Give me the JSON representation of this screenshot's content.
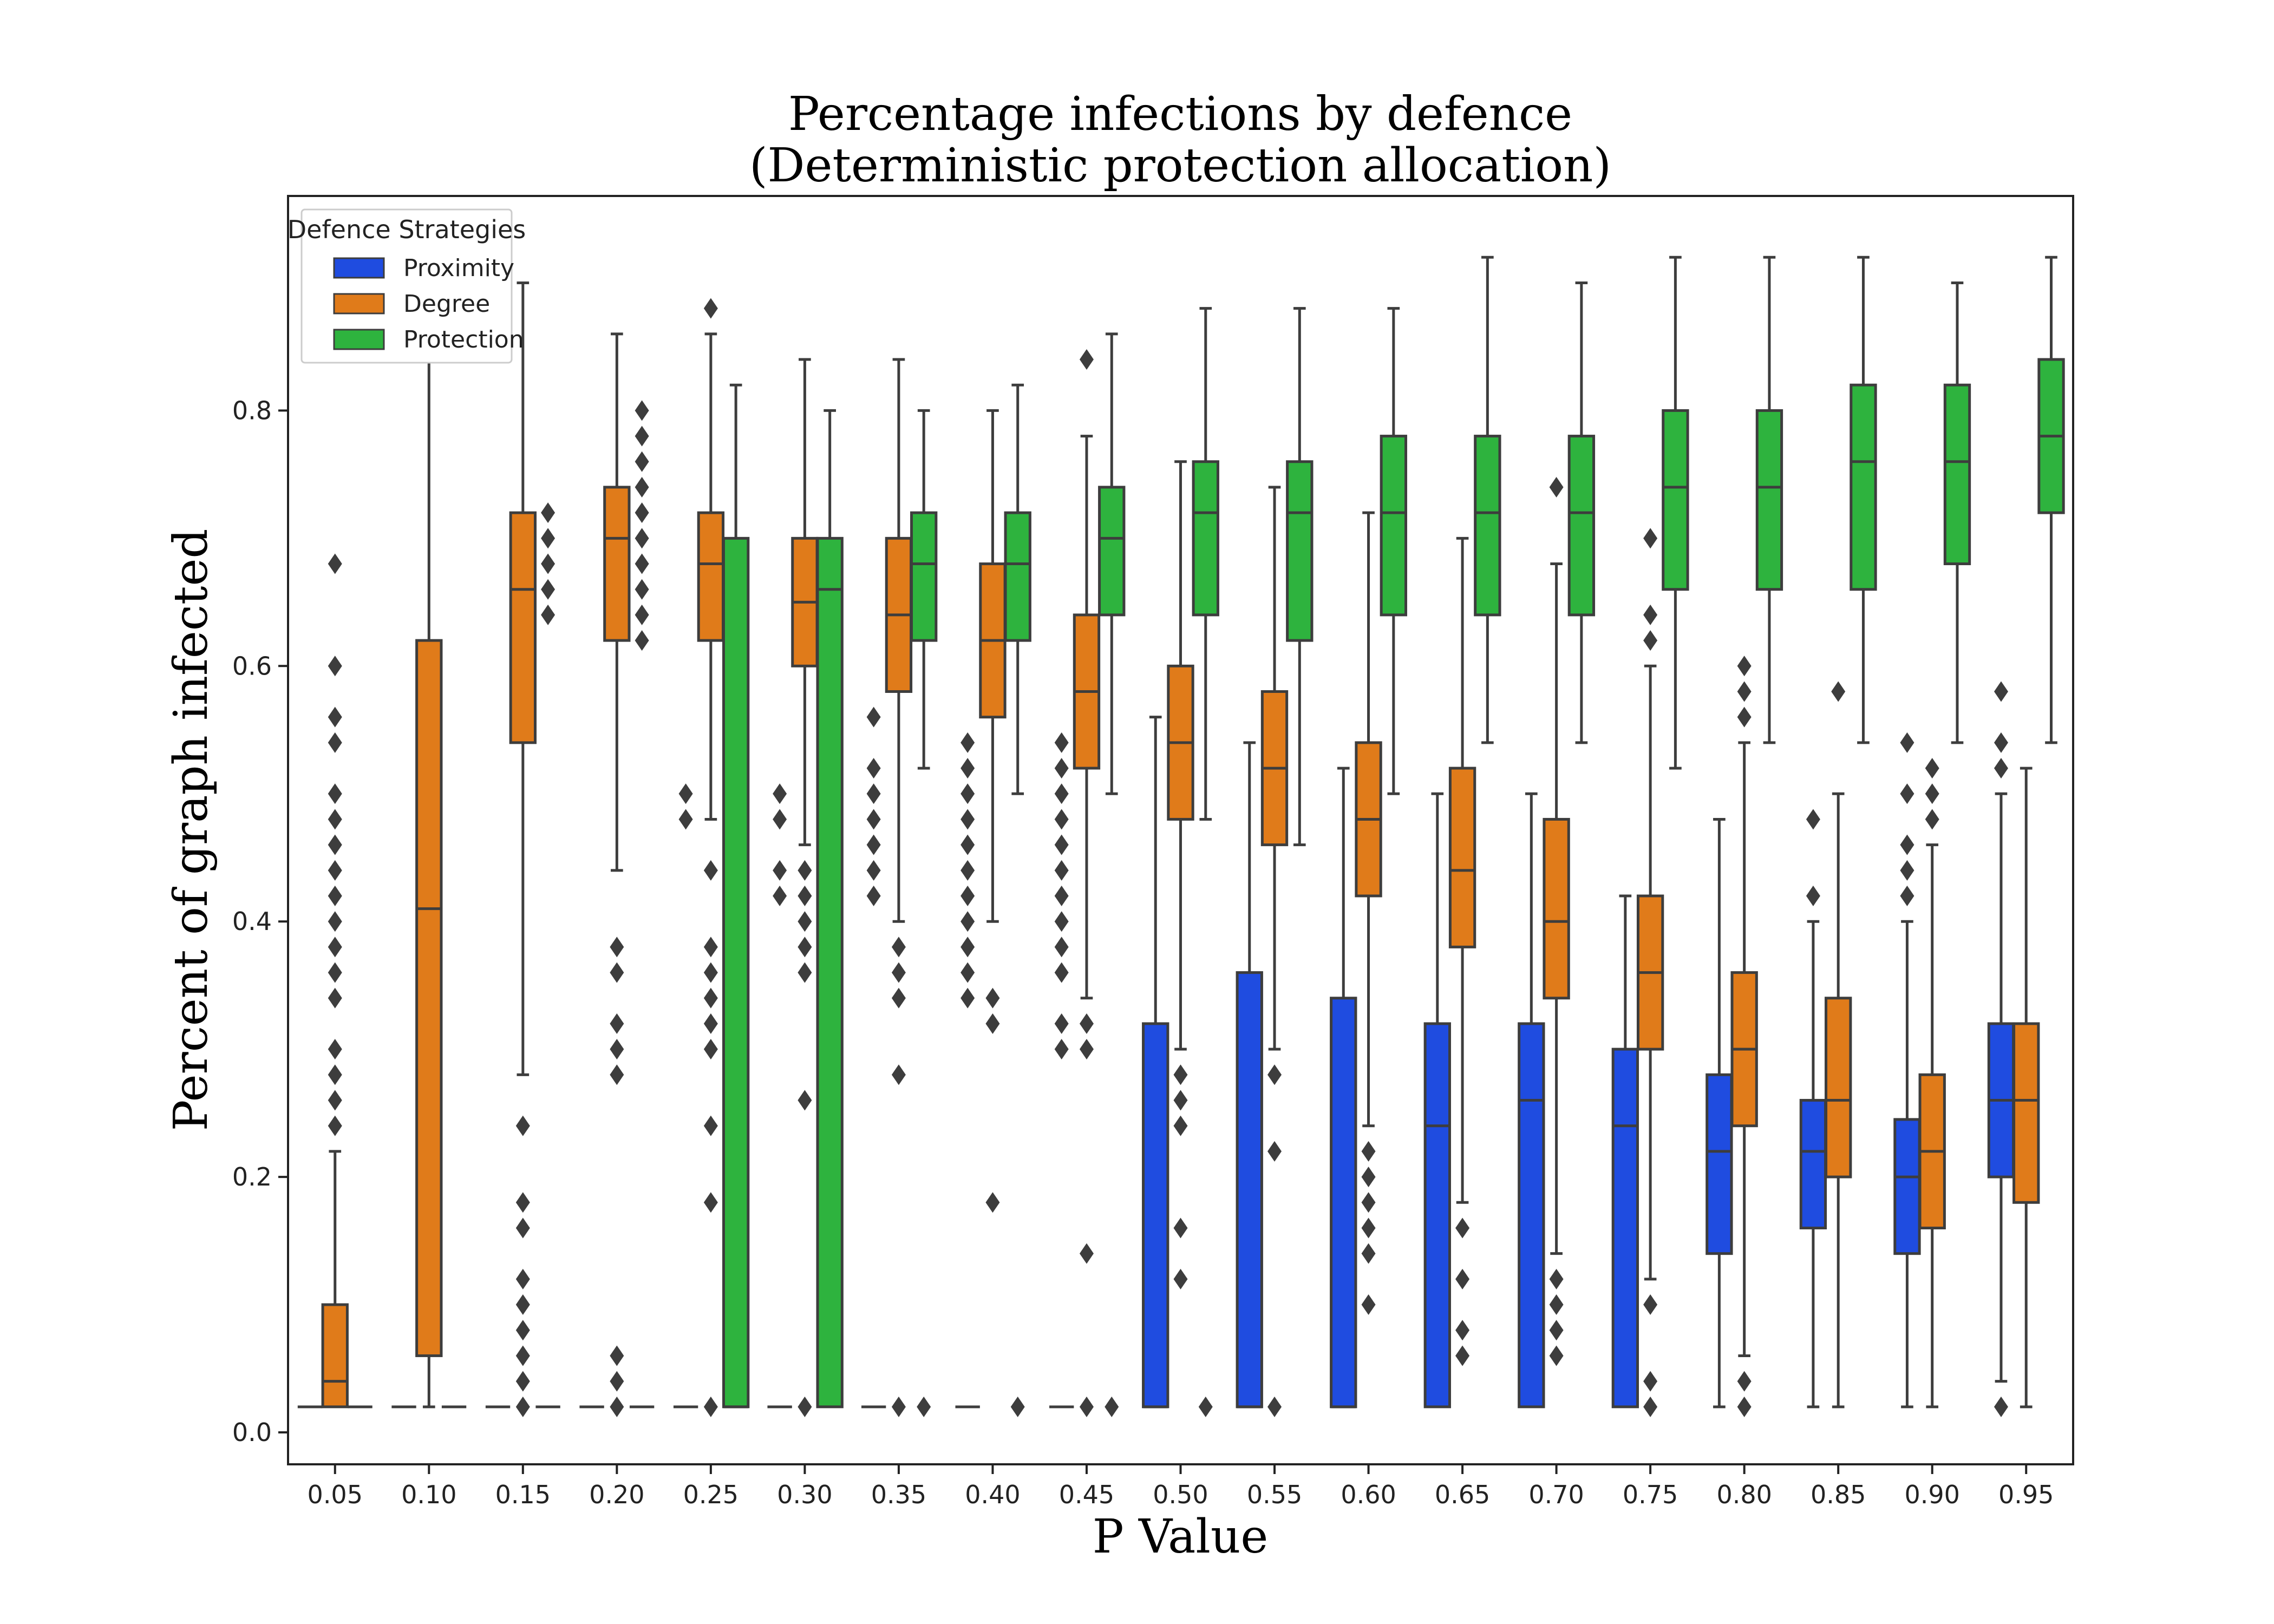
{
  "chart_data": {
    "type": "box",
    "title": "Percentage infections by defence",
    "subtitle": "(Deterministic protection allocation)",
    "xlabel": "P Value",
    "ylabel": "Percent of graph infected",
    "ylim": [
      -0.025,
      0.968
    ],
    "yticks": [
      0.0,
      0.2,
      0.4,
      0.6,
      0.8
    ],
    "ytick_labels": [
      "0.0",
      "0.2",
      "0.4",
      "0.6",
      "0.8"
    ],
    "grid": false,
    "legend": {
      "title": "Defence Strategies",
      "placement": "top-left"
    },
    "categories": [
      "0.05",
      "0.10",
      "0.15",
      "0.20",
      "0.25",
      "0.30",
      "0.35",
      "0.40",
      "0.45",
      "0.50",
      "0.55",
      "0.60",
      "0.65",
      "0.70",
      "0.75",
      "0.80",
      "0.85",
      "0.90",
      "0.95"
    ],
    "series": [
      {
        "name": "Proximity",
        "color": "#1f4ce0",
        "boxes": [
          {
            "q1": 0.02,
            "median": 0.02,
            "q3": 0.02,
            "wlo": 0.02,
            "whi": 0.02,
            "outliers": []
          },
          {
            "q1": 0.02,
            "median": 0.02,
            "q3": 0.02,
            "wlo": 0.02,
            "whi": 0.02,
            "outliers": []
          },
          {
            "q1": 0.02,
            "median": 0.02,
            "q3": 0.02,
            "wlo": 0.02,
            "whi": 0.02,
            "outliers": []
          },
          {
            "q1": 0.02,
            "median": 0.02,
            "q3": 0.02,
            "wlo": 0.02,
            "whi": 0.02,
            "outliers": []
          },
          {
            "q1": 0.02,
            "median": 0.02,
            "q3": 0.02,
            "wlo": 0.02,
            "whi": 0.02,
            "outliers": [
              0.48,
              0.5
            ]
          },
          {
            "q1": 0.02,
            "median": 0.02,
            "q3": 0.02,
            "wlo": 0.02,
            "whi": 0.02,
            "outliers": [
              0.42,
              0.44,
              0.48,
              0.5
            ]
          },
          {
            "q1": 0.02,
            "median": 0.02,
            "q3": 0.02,
            "wlo": 0.02,
            "whi": 0.02,
            "outliers": [
              0.42,
              0.44,
              0.46,
              0.48,
              0.5,
              0.52,
              0.56
            ]
          },
          {
            "q1": 0.02,
            "median": 0.02,
            "q3": 0.02,
            "wlo": 0.02,
            "whi": 0.02,
            "outliers": [
              0.34,
              0.36,
              0.38,
              0.4,
              0.42,
              0.44,
              0.46,
              0.48,
              0.5,
              0.52,
              0.54
            ]
          },
          {
            "q1": 0.02,
            "median": 0.02,
            "q3": 0.02,
            "wlo": 0.02,
            "whi": 0.02,
            "outliers": [
              0.3,
              0.32,
              0.36,
              0.38,
              0.4,
              0.42,
              0.44,
              0.46,
              0.48,
              0.5,
              0.52,
              0.54
            ]
          },
          {
            "q1": 0.02,
            "median": 0.02,
            "q3": 0.32,
            "wlo": 0.02,
            "whi": 0.56,
            "outliers": []
          },
          {
            "q1": 0.02,
            "median": 0.02,
            "q3": 0.36,
            "wlo": 0.02,
            "whi": 0.54,
            "outliers": []
          },
          {
            "q1": 0.02,
            "median": 0.02,
            "q3": 0.34,
            "wlo": 0.02,
            "whi": 0.52,
            "outliers": []
          },
          {
            "q1": 0.02,
            "median": 0.24,
            "q3": 0.32,
            "wlo": 0.02,
            "whi": 0.5,
            "outliers": []
          },
          {
            "q1": 0.02,
            "median": 0.26,
            "q3": 0.32,
            "wlo": 0.02,
            "whi": 0.5,
            "outliers": []
          },
          {
            "q1": 0.02,
            "median": 0.24,
            "q3": 0.3,
            "wlo": 0.02,
            "whi": 0.42,
            "outliers": []
          },
          {
            "q1": 0.14,
            "median": 0.22,
            "q3": 0.28,
            "wlo": 0.02,
            "whi": 0.48,
            "outliers": []
          },
          {
            "q1": 0.16,
            "median": 0.22,
            "q3": 0.26,
            "wlo": 0.02,
            "whi": 0.4,
            "outliers": [
              0.42,
              0.48
            ]
          },
          {
            "q1": 0.14,
            "median": 0.2,
            "q3": 0.245,
            "wlo": 0.02,
            "whi": 0.4,
            "outliers": [
              0.42,
              0.44,
              0.46,
              0.5,
              0.54
            ]
          },
          {
            "q1": 0.2,
            "median": 0.26,
            "q3": 0.32,
            "wlo": 0.04,
            "whi": 0.5,
            "outliers": [
              0.02,
              0.52,
              0.54,
              0.58
            ]
          }
        ]
      },
      {
        "name": "Degree",
        "color": "#e07b1a",
        "boxes": [
          {
            "q1": 0.02,
            "median": 0.04,
            "q3": 0.1,
            "wlo": 0.02,
            "whi": 0.22,
            "outliers": [
              0.24,
              0.26,
              0.28,
              0.3,
              0.34,
              0.36,
              0.38,
              0.4,
              0.42,
              0.44,
              0.46,
              0.48,
              0.5,
              0.54,
              0.56,
              0.6,
              0.68
            ]
          },
          {
            "q1": 0.06,
            "median": 0.41,
            "q3": 0.62,
            "wlo": 0.02,
            "whi": 0.84,
            "outliers": []
          },
          {
            "q1": 0.54,
            "median": 0.66,
            "q3": 0.72,
            "wlo": 0.28,
            "whi": 0.9,
            "outliers": [
              0.02,
              0.04,
              0.06,
              0.08,
              0.1,
              0.12,
              0.16,
              0.18,
              0.24
            ]
          },
          {
            "q1": 0.62,
            "median": 0.7,
            "q3": 0.74,
            "wlo": 0.44,
            "whi": 0.86,
            "outliers": [
              0.02,
              0.04,
              0.06,
              0.28,
              0.3,
              0.32,
              0.36,
              0.38
            ]
          },
          {
            "q1": 0.62,
            "median": 0.68,
            "q3": 0.72,
            "wlo": 0.48,
            "whi": 0.86,
            "outliers": [
              0.02,
              0.18,
              0.24,
              0.3,
              0.32,
              0.34,
              0.36,
              0.38,
              0.44,
              0.88
            ]
          },
          {
            "q1": 0.6,
            "median": 0.65,
            "q3": 0.7,
            "wlo": 0.46,
            "whi": 0.84,
            "outliers": [
              0.02,
              0.26,
              0.36,
              0.38,
              0.4,
              0.42,
              0.44
            ]
          },
          {
            "q1": 0.58,
            "median": 0.64,
            "q3": 0.7,
            "wlo": 0.4,
            "whi": 0.84,
            "outliers": [
              0.02,
              0.28,
              0.34,
              0.36,
              0.38
            ]
          },
          {
            "q1": 0.56,
            "median": 0.62,
            "q3": 0.68,
            "wlo": 0.4,
            "whi": 0.8,
            "outliers": [
              0.18,
              0.32,
              0.34
            ]
          },
          {
            "q1": 0.52,
            "median": 0.58,
            "q3": 0.64,
            "wlo": 0.34,
            "whi": 0.78,
            "outliers": [
              0.02,
              0.14,
              0.3,
              0.32,
              0.84
            ]
          },
          {
            "q1": 0.48,
            "median": 0.54,
            "q3": 0.6,
            "wlo": 0.3,
            "whi": 0.76,
            "outliers": [
              0.12,
              0.16,
              0.24,
              0.26,
              0.28
            ]
          },
          {
            "q1": 0.46,
            "median": 0.52,
            "q3": 0.58,
            "wlo": 0.3,
            "whi": 0.74,
            "outliers": [
              0.02,
              0.22,
              0.28
            ]
          },
          {
            "q1": 0.42,
            "median": 0.48,
            "q3": 0.54,
            "wlo": 0.24,
            "whi": 0.72,
            "outliers": [
              0.1,
              0.14,
              0.16,
              0.18,
              0.2,
              0.22
            ]
          },
          {
            "q1": 0.38,
            "median": 0.44,
            "q3": 0.52,
            "wlo": 0.18,
            "whi": 0.7,
            "outliers": [
              0.06,
              0.08,
              0.12,
              0.16
            ]
          },
          {
            "q1": 0.34,
            "median": 0.4,
            "q3": 0.48,
            "wlo": 0.14,
            "whi": 0.68,
            "outliers": [
              0.06,
              0.08,
              0.1,
              0.12,
              0.74
            ]
          },
          {
            "q1": 0.3,
            "median": 0.36,
            "q3": 0.42,
            "wlo": 0.12,
            "whi": 0.6,
            "outliers": [
              0.02,
              0.04,
              0.1,
              0.62,
              0.64,
              0.7
            ]
          },
          {
            "q1": 0.24,
            "median": 0.3,
            "q3": 0.36,
            "wlo": 0.06,
            "whi": 0.54,
            "outliers": [
              0.02,
              0.04,
              0.56,
              0.58,
              0.6
            ]
          },
          {
            "q1": 0.2,
            "median": 0.26,
            "q3": 0.34,
            "wlo": 0.02,
            "whi": 0.5,
            "outliers": [
              0.58
            ]
          },
          {
            "q1": 0.16,
            "median": 0.22,
            "q3": 0.28,
            "wlo": 0.02,
            "whi": 0.46,
            "outliers": [
              0.48,
              0.5,
              0.52
            ]
          },
          {
            "q1": 0.18,
            "median": 0.26,
            "q3": 0.32,
            "wlo": 0.02,
            "whi": 0.52,
            "outliers": []
          }
        ]
      },
      {
        "name": "Protection",
        "color": "#2eb33e",
        "boxes": [
          {
            "q1": 0.02,
            "median": 0.02,
            "q3": 0.02,
            "wlo": 0.02,
            "whi": 0.02,
            "outliers": []
          },
          {
            "q1": 0.02,
            "median": 0.02,
            "q3": 0.02,
            "wlo": 0.02,
            "whi": 0.02,
            "outliers": []
          },
          {
            "q1": 0.02,
            "median": 0.02,
            "q3": 0.02,
            "wlo": 0.02,
            "whi": 0.02,
            "outliers": [
              0.64,
              0.66,
              0.68,
              0.7,
              0.72
            ]
          },
          {
            "q1": 0.02,
            "median": 0.02,
            "q3": 0.02,
            "wlo": 0.02,
            "whi": 0.02,
            "outliers": [
              0.62,
              0.64,
              0.66,
              0.68,
              0.7,
              0.72,
              0.74,
              0.76,
              0.78,
              0.8
            ]
          },
          {
            "q1": 0.02,
            "median": 0.02,
            "q3": 0.7,
            "wlo": 0.02,
            "whi": 0.82,
            "outliers": []
          },
          {
            "q1": 0.02,
            "median": 0.66,
            "q3": 0.7,
            "wlo": 0.02,
            "whi": 0.8,
            "outliers": []
          },
          {
            "q1": 0.62,
            "median": 0.68,
            "q3": 0.72,
            "wlo": 0.52,
            "whi": 0.8,
            "outliers": [
              0.02
            ]
          },
          {
            "q1": 0.62,
            "median": 0.68,
            "q3": 0.72,
            "wlo": 0.5,
            "whi": 0.82,
            "outliers": [
              0.02
            ]
          },
          {
            "q1": 0.64,
            "median": 0.7,
            "q3": 0.74,
            "wlo": 0.5,
            "whi": 0.86,
            "outliers": [
              0.02
            ]
          },
          {
            "q1": 0.64,
            "median": 0.72,
            "q3": 0.76,
            "wlo": 0.48,
            "whi": 0.88,
            "outliers": [
              0.02
            ]
          },
          {
            "q1": 0.62,
            "median": 0.72,
            "q3": 0.76,
            "wlo": 0.46,
            "whi": 0.88,
            "outliers": []
          },
          {
            "q1": 0.64,
            "median": 0.72,
            "q3": 0.78,
            "wlo": 0.5,
            "whi": 0.88,
            "outliers": []
          },
          {
            "q1": 0.64,
            "median": 0.72,
            "q3": 0.78,
            "wlo": 0.54,
            "whi": 0.92,
            "outliers": []
          },
          {
            "q1": 0.64,
            "median": 0.72,
            "q3": 0.78,
            "wlo": 0.54,
            "whi": 0.9,
            "outliers": []
          },
          {
            "q1": 0.66,
            "median": 0.74,
            "q3": 0.8,
            "wlo": 0.52,
            "whi": 0.92,
            "outliers": []
          },
          {
            "q1": 0.66,
            "median": 0.74,
            "q3": 0.8,
            "wlo": 0.54,
            "whi": 0.92,
            "outliers": []
          },
          {
            "q1": 0.66,
            "median": 0.76,
            "q3": 0.82,
            "wlo": 0.54,
            "whi": 0.92,
            "outliers": []
          },
          {
            "q1": 0.68,
            "median": 0.76,
            "q3": 0.82,
            "wlo": 0.54,
            "whi": 0.9,
            "outliers": []
          },
          {
            "q1": 0.72,
            "median": 0.78,
            "q3": 0.84,
            "wlo": 0.54,
            "whi": 0.92,
            "outliers": []
          }
        ]
      }
    ]
  }
}
